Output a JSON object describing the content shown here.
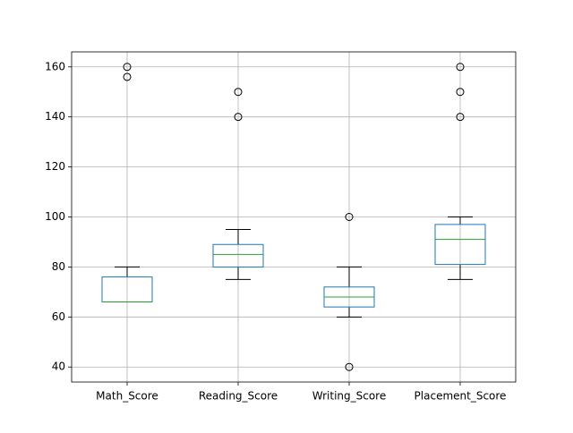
{
  "chart_data": {
    "type": "box",
    "categories": [
      "Math_Score",
      "Reading_Score",
      "Writing_Score",
      "Placement_Score"
    ],
    "boxes": [
      {
        "whislo": 66,
        "q1": 66,
        "med": 66,
        "q3": 76,
        "whishi": 80,
        "fliers": [
          156,
          160
        ]
      },
      {
        "whislo": 75,
        "q1": 80,
        "med": 85,
        "q3": 89,
        "whishi": 95,
        "fliers": [
          140,
          150
        ]
      },
      {
        "whislo": 60,
        "q1": 64,
        "med": 68,
        "q3": 72,
        "whishi": 80,
        "fliers": [
          40,
          100
        ]
      },
      {
        "whislo": 75,
        "q1": 81,
        "med": 91,
        "q3": 97,
        "whishi": 100,
        "fliers": [
          140,
          150,
          160
        ]
      }
    ],
    "color": "#1f77b4",
    "median_color": "#2ca02c",
    "ylim": [
      34,
      166
    ],
    "yticks": [
      40,
      60,
      80,
      100,
      120,
      140,
      160
    ],
    "grid": true
  }
}
